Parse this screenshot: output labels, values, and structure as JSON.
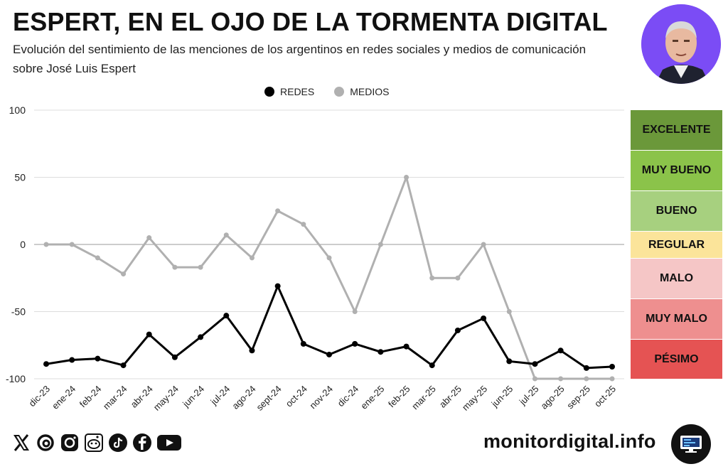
{
  "header": {
    "title": "ESPERT, EN EL OJO DE LA TORMENTA DIGITAL",
    "subtitle": "Evolución del sentimiento de las menciones de los argentinos en redes sociales y medios de comunicación sobre José Luis Espert"
  },
  "legend": {
    "redes_label": "REDES",
    "medios_label": "MEDIOS"
  },
  "colors": {
    "redes": "#000000",
    "medios": "#b0b0b0",
    "excelente": "#6b983a",
    "muy_bueno": "#8bc34a",
    "bueno": "#a7d07f",
    "regular": "#fbe49a",
    "malo": "#f5c6c6",
    "muy_malo": "#ee8f8f",
    "pesimo": "#e55353"
  },
  "scale": {
    "excelente": "EXCELENTE",
    "muy_bueno": "MUY BUENO",
    "bueno": "BUENO",
    "regular": "REGULAR",
    "malo": "MALO",
    "muy_malo": "MUY MALO",
    "pesimo": "PÉSIMO"
  },
  "chart_data": {
    "type": "line",
    "title": "ESPERT, EN EL OJO DE LA TORMENTA DIGITAL",
    "xlabel": "",
    "ylabel": "",
    "ylim": [
      -100,
      100
    ],
    "yticks": [
      100,
      50,
      0,
      -50,
      -100
    ],
    "categories": [
      "dic-23",
      "ene-24",
      "feb-24",
      "mar-24",
      "abr-24",
      "may-24",
      "jun-24",
      "jul-24",
      "ago-24",
      "sept-24",
      "oct-24",
      "nov-24",
      "dic-24",
      "ene-25",
      "feb-25",
      "mar-25",
      "abr-25",
      "may-25",
      "jun-25",
      "jul-25",
      "ago-25",
      "sep-25",
      "oct-25"
    ],
    "series": [
      {
        "name": "REDES",
        "values": [
          -89,
          -86,
          -85,
          -90,
          -67,
          -84,
          -69,
          -53,
          -79,
          -31,
          -74,
          -82,
          -74,
          -80,
          -76,
          -90,
          -64,
          -55,
          -87,
          -89,
          -79,
          -92,
          -91
        ]
      },
      {
        "name": "MEDIOS",
        "values": [
          0,
          0,
          -10,
          -22,
          5,
          -17,
          -17,
          7,
          -10,
          25,
          15,
          -10,
          -50,
          0,
          50,
          -25,
          -25,
          0,
          -50,
          -100,
          -100,
          -100,
          -100
        ]
      }
    ],
    "legend_position": "top-center",
    "grid": true
  },
  "footer": {
    "site": "monitordigital.info",
    "social_icons": [
      "x-icon",
      "threads-icon",
      "instagram-icon",
      "reddit-icon",
      "tiktok-icon",
      "facebook-icon",
      "youtube-icon"
    ]
  }
}
